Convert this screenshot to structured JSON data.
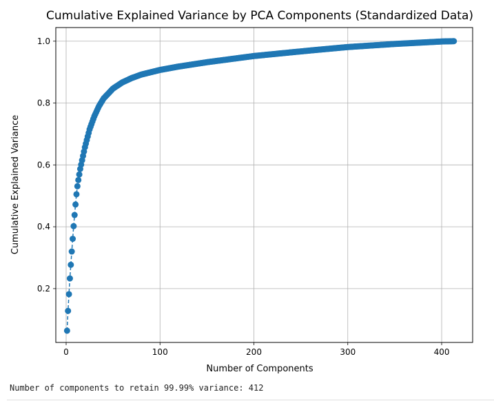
{
  "chart_data": {
    "type": "line",
    "title": "Cumulative Explained Variance by PCA Components (Standardized Data)",
    "xlabel": "Number of Components",
    "ylabel": "Cumulative Explained Variance",
    "xlim": [
      -11,
      433
    ],
    "ylim": [
      0.026,
      1.044
    ],
    "xticks": [
      0,
      100,
      200,
      300,
      400
    ],
    "yticks": [
      0.2,
      0.4,
      0.6,
      0.8,
      1.0
    ],
    "xtick_labels": [
      "0",
      "100",
      "200",
      "300",
      "400"
    ],
    "ytick_labels": [
      "0.2",
      "0.4",
      "0.6",
      "0.8",
      "1.0"
    ],
    "grid": true,
    "marker": "circle",
    "linestyle": "dashed",
    "n_components": 413,
    "series": [
      {
        "color": "#1f77b4",
        "key_points": [
          [
            1,
            0.064
          ],
          [
            2,
            0.128
          ],
          [
            3,
            0.182
          ],
          [
            4,
            0.233
          ],
          [
            5,
            0.277
          ],
          [
            6,
            0.32
          ],
          [
            7,
            0.361
          ],
          [
            8,
            0.402
          ],
          [
            9,
            0.438
          ],
          [
            10,
            0.472
          ],
          [
            11,
            0.505
          ],
          [
            12,
            0.531
          ],
          [
            13,
            0.551
          ],
          [
            15,
            0.587
          ],
          [
            20,
            0.657
          ],
          [
            25,
            0.715
          ],
          [
            30,
            0.757
          ],
          [
            35,
            0.79
          ],
          [
            40,
            0.815
          ],
          [
            50,
            0.847
          ],
          [
            60,
            0.867
          ],
          [
            70,
            0.881
          ],
          [
            80,
            0.892
          ],
          [
            100,
            0.907
          ],
          [
            120,
            0.918
          ],
          [
            150,
            0.932
          ],
          [
            200,
            0.952
          ],
          [
            250,
            0.967
          ],
          [
            300,
            0.981
          ],
          [
            350,
            0.991
          ],
          [
            400,
            0.999
          ],
          [
            413,
            1.0
          ]
        ]
      }
    ]
  },
  "output": {
    "text": "Number of components to retain 99.99% variance: 412"
  }
}
